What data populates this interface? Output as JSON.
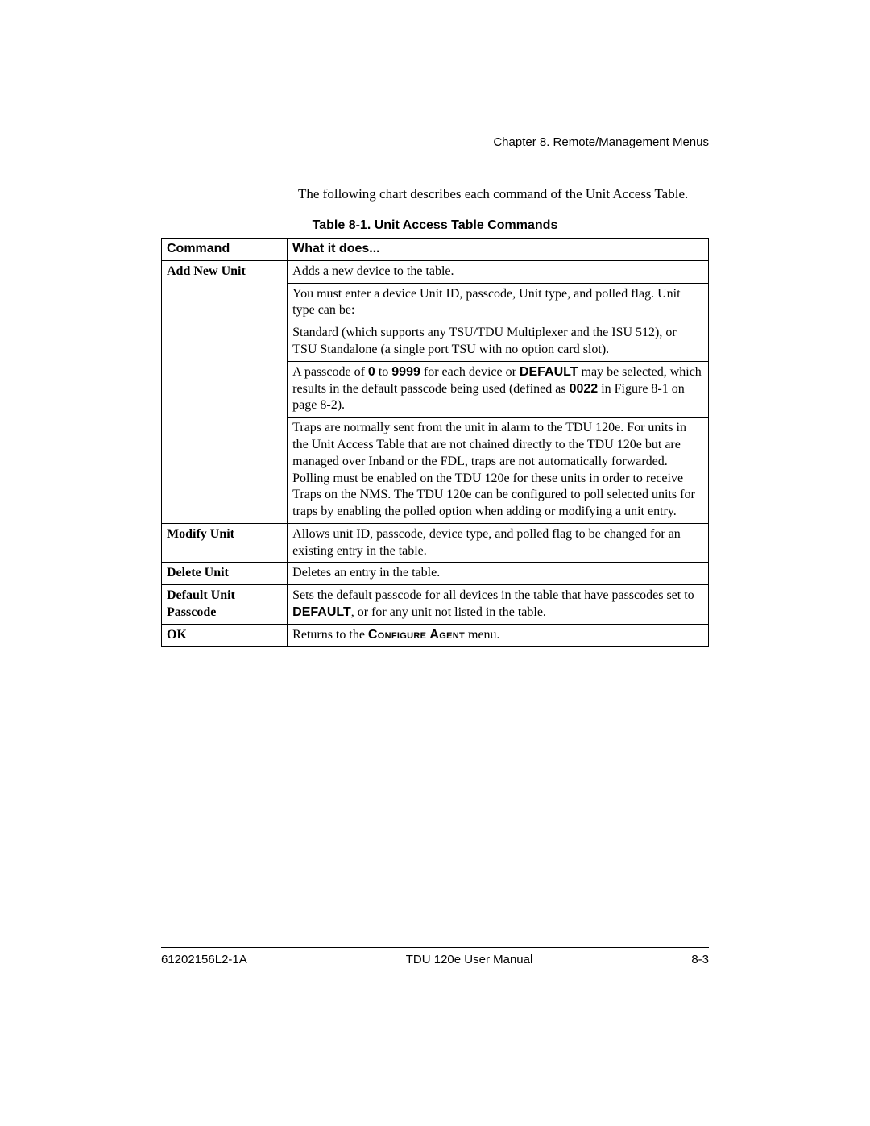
{
  "header": {
    "chapter_line": "Chapter 8. Remote/Management Menus"
  },
  "intro_text": "The following chart describes each command of the Unit Access Table.",
  "table": {
    "caption": "Table 8-1.  Unit Access Table Commands",
    "columns": [
      "Command",
      "What it does..."
    ],
    "rows": [
      {
        "command": "Add New Unit",
        "desc_html": "Adds a new device to the table."
      },
      {
        "command": "",
        "desc_html": "You must enter a device Unit ID, passcode, Unit type, and polled flag. Unit type can be:"
      },
      {
        "command": "",
        "desc_html": "Standard (which supports any TSU/TDU Multiplexer and the ISU 512), or TSU Standalone (a single port TSU with no option card slot)."
      },
      {
        "command": "",
        "desc_html": "A passcode of <span class=\"bold-sans\">0</span> to <span class=\"bold-sans\">9999</span> for each device or <span class=\"bold-sans\">DEFAULT</span> may be selected, which results in the default passcode being used (defined as <span class=\"bold-sans\">0022</span> in Figure 8-1 on page 8-2)."
      },
      {
        "command": "",
        "desc_html": "Traps are normally sent from the unit in alarm to the TDU 120e. For units in the Unit Access Table that are not chained directly to the TDU 120e but are managed over Inband or the FDL, traps are not automatically forwarded. Polling must be enabled on the TDU 120e for these units in order to receive Traps on the NMS. The TDU 120e can be configured to poll selected units for traps by enabling the polled option when adding or modifying a unit entry."
      },
      {
        "command": "Modify Unit",
        "desc_html": "Allows unit ID, passcode, device type, and polled flag to be changed for an existing entry in the table."
      },
      {
        "command": "Delete Unit",
        "desc_html": "Deletes an entry in the table."
      },
      {
        "command": "Default Unit Passcode",
        "desc_html": "Sets the default passcode for all devices in the table that have passcodes set to <span class=\"bold-sans\">DEFAULT</span>, or for any unit not listed in the table."
      },
      {
        "command": "OK",
        "desc_html": "Returns to the <span class=\"sc-sans\">Configure Agent</span> menu."
      }
    ]
  },
  "footer": {
    "left": "61202156L2-1A",
    "center": "TDU 120e User Manual",
    "right": "8-3"
  }
}
